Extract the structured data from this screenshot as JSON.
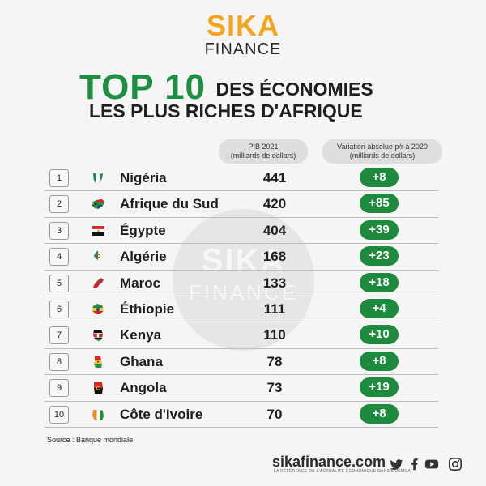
{
  "logo": {
    "line1": "SIKA",
    "line2": "FINANCE"
  },
  "watermark": {
    "line1": "SIKA",
    "line2": "FINANCE"
  },
  "title": {
    "big": "TOP 10",
    "rest1": "DES ÉCONOMIES",
    "line2": "LES PLUS RICHES D'AFRIQUE"
  },
  "columns": {
    "pib": {
      "line1": "PIB 2021",
      "line2": "(milliards de dollars)"
    },
    "variation": {
      "line1": "Variation absolue p/r à 2020",
      "line2": "(milliards de dollars)"
    }
  },
  "rows": [
    {
      "rank": "1",
      "country": "Nigéria",
      "pib": "441",
      "variation": "+8"
    },
    {
      "rank": "2",
      "country": "Afrique du Sud",
      "pib": "420",
      "variation": "+85"
    },
    {
      "rank": "3",
      "country": "Égypte",
      "pib": "404",
      "variation": "+39"
    },
    {
      "rank": "4",
      "country": "Algérie",
      "pib": "168",
      "variation": "+23"
    },
    {
      "rank": "5",
      "country": "Maroc",
      "pib": "133",
      "variation": "+18"
    },
    {
      "rank": "6",
      "country": "Éthiopie",
      "pib": "111",
      "variation": "+4"
    },
    {
      "rank": "7",
      "country": "Kenya",
      "pib": "110",
      "variation": "+10"
    },
    {
      "rank": "8",
      "country": "Ghana",
      "pib": "78",
      "variation": "+8"
    },
    {
      "rank": "9",
      "country": "Angola",
      "pib": "73",
      "variation": "+19"
    },
    {
      "rank": "10",
      "country": "Côte d'Ivoire",
      "pib": "70",
      "variation": "+8"
    }
  ],
  "source": "Source : Banque mondiale",
  "footer": {
    "site": "sikafinance.com",
    "tagline": "LA RÉFÉRENCE DE L'ACTUALITÉ ÉCONOMIQUE DANS L'UEMOA"
  },
  "icons": [
    "twitter-icon",
    "facebook-icon",
    "youtube-icon",
    "instagram-icon"
  ],
  "colors": {
    "brand_orange": "#f2a51e",
    "green": "#1d8f43",
    "badge_green": "#1e8a3d"
  }
}
